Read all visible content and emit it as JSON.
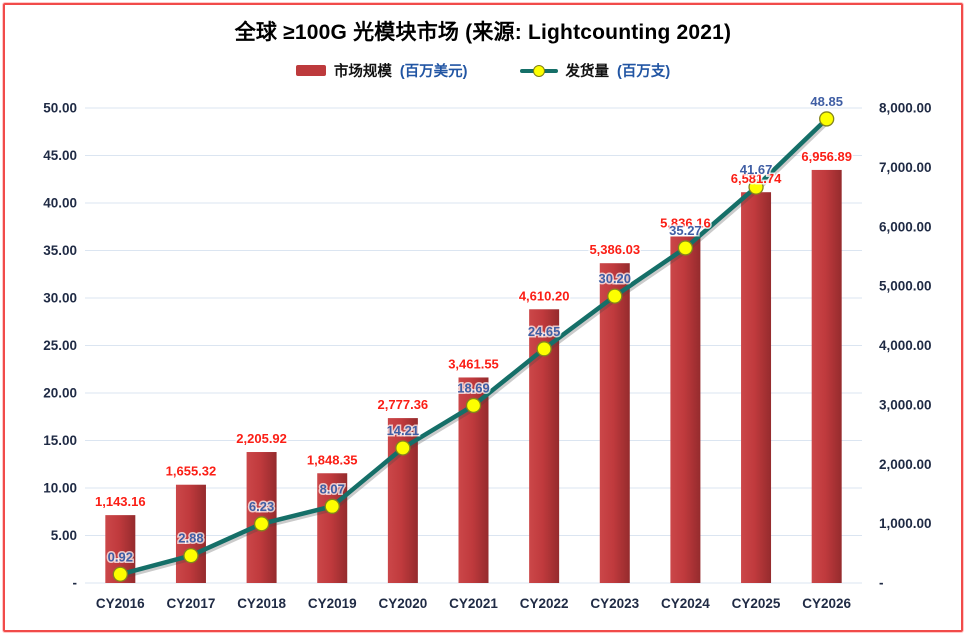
{
  "title": "全球 ≥100G 光模块市场 (来源: Lightcounting 2021)",
  "legend": {
    "bar_name": "市场规模",
    "bar_unit": "(百万美元)",
    "line_name": "发货量",
    "line_unit": "(百万支)"
  },
  "colors": {
    "frame_border": "#f14b4a",
    "gridline": "#dbe5f1",
    "bar_fill": "#c23b3e",
    "bar_label": "#fb1e15",
    "line_stroke": "#156f68",
    "marker_fill": "#fdff00",
    "marker_border": "#84841c",
    "line_label": "#3f5ea4",
    "axis_text": "#1f2a44"
  },
  "chart_data": {
    "type": "bar",
    "subtype": "combo-bar-line-dual-axis",
    "title": "全球 ≥100G 光模块市场 (来源: Lightcounting 2021)",
    "categories": [
      "CY2016",
      "CY2017",
      "CY2018",
      "CY2019",
      "CY2020",
      "CY2021",
      "CY2022",
      "CY2023",
      "CY2024",
      "CY2025",
      "CY2026"
    ],
    "series": [
      {
        "name": "市场规模(百万美元)",
        "type": "bar",
        "axis": "right",
        "values": [
          1143.16,
          1655.32,
          2205.92,
          1848.35,
          2777.36,
          3461.55,
          4610.2,
          5386.03,
          5836.16,
          6581.74,
          6956.89
        ],
        "labels": [
          "1,143.16",
          "1,655.32",
          "2,205.92",
          "1,848.35",
          "2,777.36",
          "3,461.55",
          "4,610.20",
          "5,386.03",
          "5,836.16",
          "6,581.74",
          "6,956.89"
        ]
      },
      {
        "name": "发货量(百万支)",
        "type": "line",
        "axis": "left",
        "values": [
          0.92,
          2.88,
          6.23,
          8.07,
          14.21,
          18.69,
          24.65,
          30.2,
          35.27,
          41.67,
          48.85
        ],
        "labels": [
          "0.92",
          "2.88",
          "6.23",
          "8.07",
          "14.21",
          "18.69",
          "24.65",
          "30.20",
          "35.27",
          "41.67",
          "48.85"
        ]
      }
    ],
    "left_axis": {
      "min": 0,
      "max": 50,
      "step": 5,
      "tick_labels": [
        "50.00",
        "45.00",
        "40.00",
        "35.00",
        "30.00",
        "25.00",
        "20.00",
        "15.00",
        "10.00",
        "5.00",
        "-"
      ]
    },
    "right_axis": {
      "min": 0,
      "max": 8000,
      "step": 1000,
      "tick_labels": [
        "8,000.00",
        "7,000.00",
        "6,000.00",
        "5,000.00",
        "4,000.00",
        "3,000.00",
        "2,000.00",
        "1,000.00",
        "-"
      ]
    },
    "grid": "horizontal-left-axis",
    "legend_position": "top"
  }
}
